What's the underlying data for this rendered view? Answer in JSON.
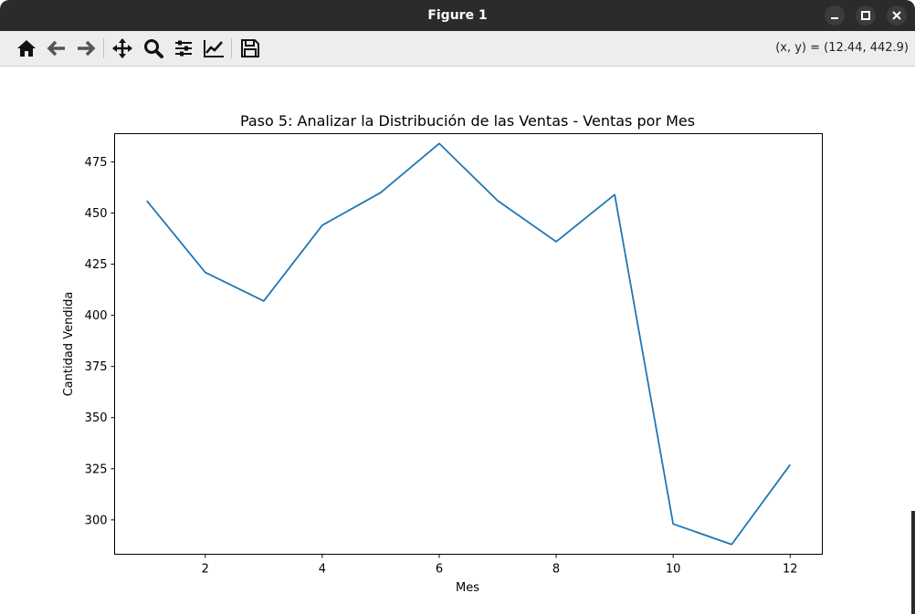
{
  "window": {
    "title": "Figure 1"
  },
  "toolbar": {
    "buttons": [
      "home-icon",
      "back-arrow-icon",
      "forward-arrow-icon",
      "pan-icon",
      "zoom-icon",
      "configure-subplots-icon",
      "edit-axis-icon",
      "save-icon"
    ],
    "coords_text": "(x, y) = (12.44, 442.9)"
  },
  "chart_data": {
    "type": "line",
    "title": "Paso 5: Analizar la Distribución de las Ventas - Ventas por Mes",
    "xlabel": "Mes",
    "ylabel": "Cantidad Vendida",
    "x": [
      1,
      2,
      3,
      4,
      5,
      6,
      7,
      8,
      9,
      10,
      11,
      12
    ],
    "series": [
      {
        "values": [
          456,
          421,
          407,
          444,
          460,
          484,
          456,
          436,
          459,
          298,
          288,
          327
        ],
        "color": "#1f77b4"
      }
    ],
    "xlim": [
      0.45,
      12.55
    ],
    "ylim": [
      283.2,
      488.8
    ],
    "xticks": [
      "2",
      "4",
      "6",
      "8",
      "10",
      "12"
    ],
    "yticks": [
      "300",
      "325",
      "350",
      "375",
      "400",
      "425",
      "450",
      "475"
    ],
    "grid": false,
    "legend": "none"
  }
}
